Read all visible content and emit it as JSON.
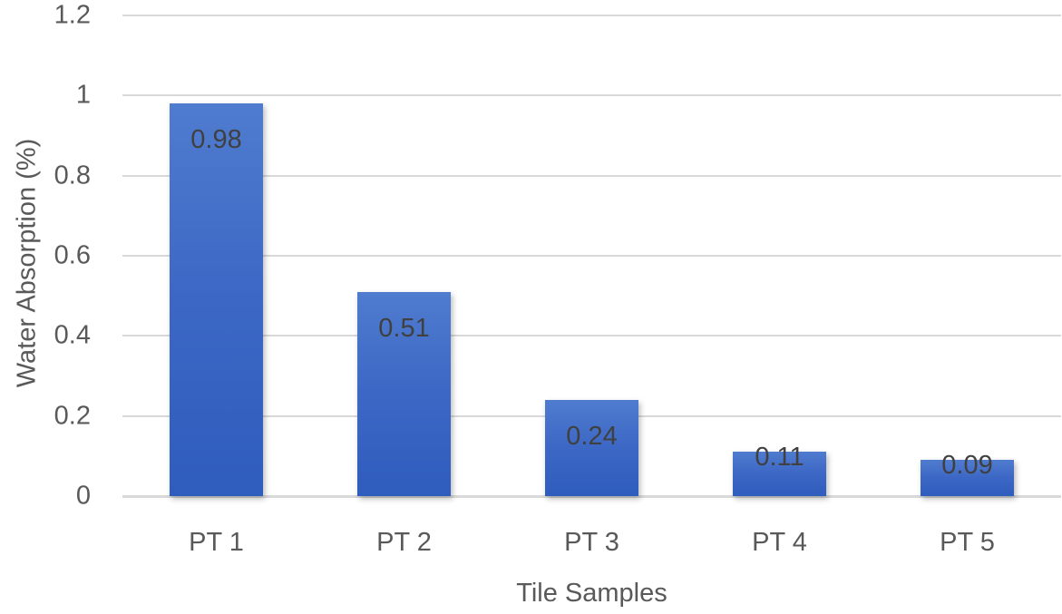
{
  "chart_data": {
    "type": "bar",
    "title": "",
    "xlabel": "Tile Samples",
    "ylabel": "Water Absorption (%)",
    "categories": [
      "PT 1",
      "PT 2",
      "PT 3",
      "PT 4",
      "PT 5"
    ],
    "values": [
      0.98,
      0.51,
      0.24,
      0.11,
      0.09
    ],
    "data_labels": [
      "0.98",
      "0.51",
      "0.24",
      "0.11",
      "0.09"
    ],
    "ylim": [
      0,
      1.2
    ],
    "yticks": [
      "0",
      "0.2",
      "0.4",
      "0.6",
      "0.8",
      "1",
      "1.2"
    ],
    "grid": true,
    "legend": null,
    "bar_color": "#3c67c5"
  }
}
